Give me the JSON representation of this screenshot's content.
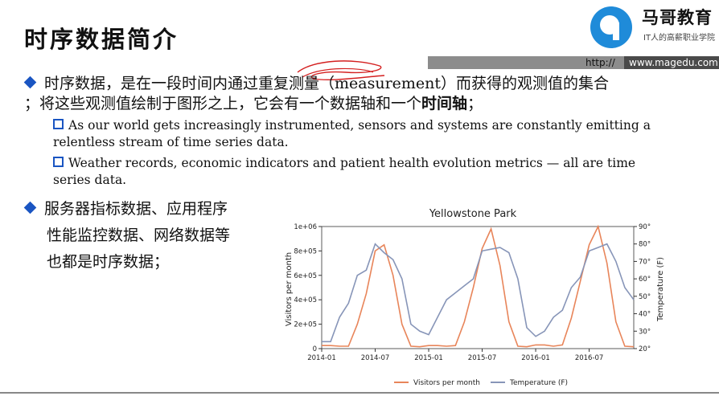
{
  "title": "时序数据简介",
  "logo": {
    "name": "马哥教育",
    "slogan": "IT人的高薪职业学院"
  },
  "url": {
    "http": "http://",
    "site": "www.magedu.com"
  },
  "bullet1": {
    "part1": "时序数据，是在一段时间内通过重复测量（measurement）而获得的观测值的集合",
    "part2": "；将这些观测值绘制于图形之上，它会有一个数据轴和一个",
    "bold": "时间轴",
    "end": "；"
  },
  "sub1": "As our world gets increasingly instrumented, sensors and systems are constantly emitting a relentless stream of time series data.",
  "sub2": "Weather records, economic indicators and patient health evolution metrics — all are time series data.",
  "bullet2": {
    "line1": "服务器指标数据、应用程序",
    "line2": "性能监控数据、网络数据等",
    "line3": "也都是时序数据；"
  },
  "colors": {
    "accent": "#1a55c2",
    "visitors": "#e8855a",
    "temperature": "#8795b8"
  },
  "chart_data": {
    "type": "line",
    "title": "Yellowstone Park",
    "ylabel_left": "Visitors per month",
    "ylabel_right": "Temperature (F)",
    "x_ticks": [
      "2014-01",
      "2014-07",
      "2015-01",
      "2015-07",
      "2016-01",
      "2016-07"
    ],
    "y_left_ticks": [
      "0",
      "2e+05",
      "4e+05",
      "6e+05",
      "8e+05",
      "1e+06"
    ],
    "y_right_ticks": [
      "20°",
      "30°",
      "40°",
      "50°",
      "60°",
      "70°",
      "80°",
      "90°"
    ],
    "ylim_left": [
      0,
      1000000
    ],
    "ylim_right": [
      20,
      90
    ],
    "series": [
      {
        "name": "Visitors per month",
        "axis": "left",
        "values": [
          25000,
          25000,
          20000,
          20000,
          200000,
          450000,
          800000,
          850000,
          600000,
          200000,
          20000,
          15000,
          25000,
          25000,
          20000,
          25000,
          220000,
          500000,
          820000,
          980000,
          680000,
          220000,
          20000,
          15000,
          30000,
          30000,
          20000,
          30000,
          250000,
          550000,
          850000,
          1000000,
          700000,
          220000,
          20000,
          15000
        ]
      },
      {
        "name": "Temperature (F)",
        "axis": "right",
        "values": [
          24,
          24,
          38,
          46,
          62,
          65,
          80,
          75,
          71,
          60,
          34,
          30,
          28,
          38,
          48,
          52,
          56,
          60,
          76,
          77,
          78,
          75,
          60,
          32,
          27,
          30,
          38,
          42,
          55,
          61,
          76,
          78,
          80,
          70,
          55,
          48
        ]
      }
    ],
    "start": "2014-01"
  }
}
